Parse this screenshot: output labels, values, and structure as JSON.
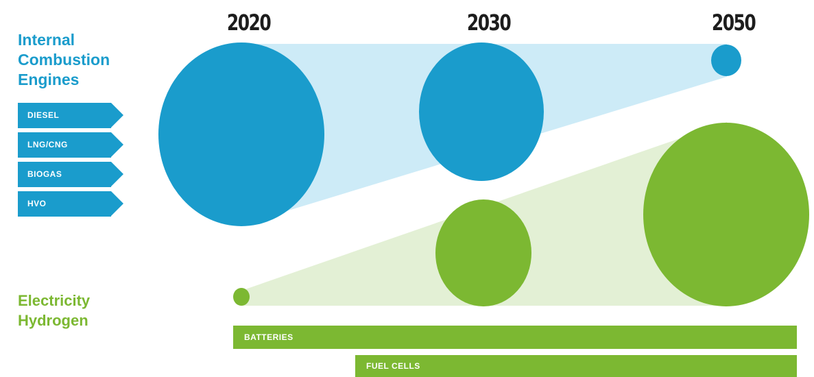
{
  "years": [
    "2020",
    "2030",
    "2050"
  ],
  "ice": {
    "heading": [
      "Internal",
      "Combustion",
      "Engines"
    ],
    "fuels": [
      "DIESEL",
      "LNG/CNG",
      "BIOGAS",
      "HVO"
    ]
  },
  "electric": {
    "heading": [
      "Electricity",
      "Hydrogen"
    ],
    "technologies": [
      "BATTERIES",
      "FUEL CELLS"
    ]
  },
  "colors": {
    "ice_blue": "#1a9ccc",
    "ice_band": "#cdebf7",
    "electric_green": "#7cb832",
    "electric_band": "#e3f0d5"
  }
}
